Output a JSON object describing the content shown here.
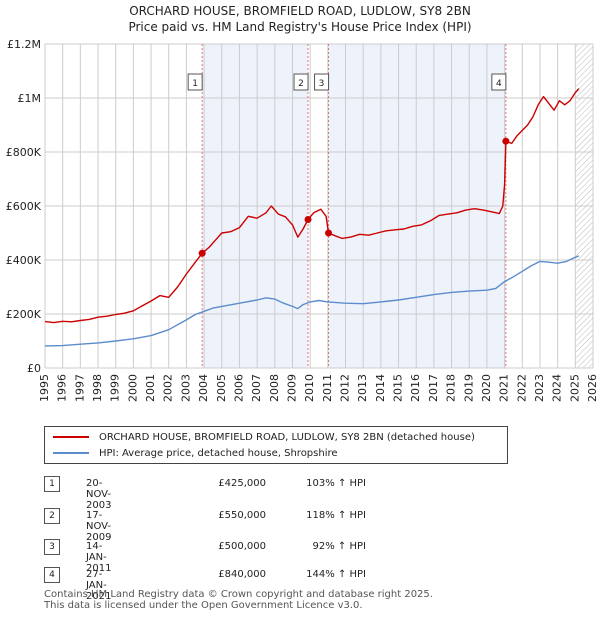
{
  "header": {
    "title": "ORCHARD HOUSE, BROMFIELD ROAD, LUDLOW, SY8 2BN",
    "subtitle": "Price paid vs. HM Land Registry's House Price Index (HPI)"
  },
  "chart_data": {
    "type": "line",
    "title": "ORCHARD HOUSE, BROMFIELD ROAD, LUDLOW, SY8 2BN",
    "subtitle": "Price paid vs. HM Land Registry's House Price Index (HPI)",
    "xlabel": "",
    "ylabel": "",
    "xlim": [
      1995,
      2026
    ],
    "ylim": [
      0,
      1200000
    ],
    "x_ticks": [
      "1995",
      "1996",
      "1997",
      "1998",
      "1999",
      "2000",
      "2001",
      "2002",
      "2003",
      "2004",
      "2005",
      "2006",
      "2007",
      "2008",
      "2009",
      "2010",
      "2011",
      "2012",
      "2013",
      "2014",
      "2015",
      "2016",
      "2017",
      "2018",
      "2019",
      "2020",
      "2021",
      "2022",
      "2023",
      "2024",
      "2025",
      "2026"
    ],
    "y_ticks": [
      {
        "value": 0,
        "label": "£0"
      },
      {
        "value": 200000,
        "label": "£200K"
      },
      {
        "value": 400000,
        "label": "£400K"
      },
      {
        "value": 600000,
        "label": "£600K"
      },
      {
        "value": 800000,
        "label": "£800K"
      },
      {
        "value": 1000000,
        "label": "£1M"
      },
      {
        "value": 1200000,
        "label": "£1.2M"
      }
    ],
    "grid": true,
    "future_from": 2025.0,
    "series": [
      {
        "name": "ORCHARD HOUSE, BROMFIELD ROAD, LUDLOW, SY8 2BN (detached house)",
        "color": "#cc0000",
        "points": [
          [
            1995.0,
            172000
          ],
          [
            1995.5,
            168000
          ],
          [
            1996.0,
            173000
          ],
          [
            1996.5,
            171000
          ],
          [
            1997.0,
            176000
          ],
          [
            1997.5,
            180000
          ],
          [
            1998.0,
            188000
          ],
          [
            1998.5,
            192000
          ],
          [
            1999.0,
            198000
          ],
          [
            1999.5,
            203000
          ],
          [
            2000.0,
            212000
          ],
          [
            2000.5,
            230000
          ],
          [
            2001.0,
            248000
          ],
          [
            2001.5,
            268000
          ],
          [
            2002.0,
            262000
          ],
          [
            2002.5,
            300000
          ],
          [
            2003.0,
            348000
          ],
          [
            2003.5,
            392000
          ],
          [
            2003.89,
            425000
          ],
          [
            2004.3,
            448000
          ],
          [
            2004.7,
            478000
          ],
          [
            2005.0,
            500000
          ],
          [
            2005.5,
            505000
          ],
          [
            2006.0,
            520000
          ],
          [
            2006.5,
            562000
          ],
          [
            2007.0,
            555000
          ],
          [
            2007.5,
            575000
          ],
          [
            2007.8,
            600000
          ],
          [
            2008.2,
            570000
          ],
          [
            2008.6,
            560000
          ],
          [
            2009.0,
            530000
          ],
          [
            2009.3,
            485000
          ],
          [
            2009.6,
            515000
          ],
          [
            2009.88,
            550000
          ],
          [
            2010.2,
            575000
          ],
          [
            2010.6,
            588000
          ],
          [
            2010.9,
            562000
          ],
          [
            2011.04,
            500000
          ],
          [
            2011.4,
            490000
          ],
          [
            2011.8,
            480000
          ],
          [
            2012.3,
            485000
          ],
          [
            2012.8,
            495000
          ],
          [
            2013.3,
            492000
          ],
          [
            2013.8,
            500000
          ],
          [
            2014.3,
            508000
          ],
          [
            2014.8,
            512000
          ],
          [
            2015.3,
            515000
          ],
          [
            2015.8,
            525000
          ],
          [
            2016.3,
            530000
          ],
          [
            2016.8,
            545000
          ],
          [
            2017.3,
            565000
          ],
          [
            2017.8,
            570000
          ],
          [
            2018.3,
            575000
          ],
          [
            2018.8,
            585000
          ],
          [
            2019.3,
            590000
          ],
          [
            2019.8,
            585000
          ],
          [
            2020.3,
            578000
          ],
          [
            2020.7,
            572000
          ],
          [
            2020.9,
            600000
          ],
          [
            2021.0,
            680000
          ],
          [
            2021.07,
            840000
          ],
          [
            2021.4,
            832000
          ],
          [
            2021.7,
            860000
          ],
          [
            2022.0,
            880000
          ],
          [
            2022.3,
            900000
          ],
          [
            2022.6,
            930000
          ],
          [
            2022.9,
            975000
          ],
          [
            2023.2,
            1005000
          ],
          [
            2023.5,
            980000
          ],
          [
            2023.8,
            955000
          ],
          [
            2024.1,
            990000
          ],
          [
            2024.4,
            975000
          ],
          [
            2024.7,
            990000
          ],
          [
            2025.0,
            1020000
          ],
          [
            2025.2,
            1035000
          ]
        ]
      },
      {
        "name": "HPI: Average price, detached house, Shropshire",
        "color": "#5b8ccc",
        "points": [
          [
            1995.0,
            82000
          ],
          [
            1996.0,
            83000
          ],
          [
            1997.0,
            88000
          ],
          [
            1998.0,
            93000
          ],
          [
            1999.0,
            100000
          ],
          [
            2000.0,
            108000
          ],
          [
            2001.0,
            120000
          ],
          [
            2002.0,
            142000
          ],
          [
            2003.0,
            178000
          ],
          [
            2003.5,
            198000
          ],
          [
            2004.0,
            210000
          ],
          [
            2004.5,
            222000
          ],
          [
            2005.0,
            228000
          ],
          [
            2006.0,
            240000
          ],
          [
            2007.0,
            252000
          ],
          [
            2007.5,
            260000
          ],
          [
            2008.0,
            255000
          ],
          [
            2008.5,
            240000
          ],
          [
            2009.0,
            228000
          ],
          [
            2009.3,
            220000
          ],
          [
            2009.6,
            235000
          ],
          [
            2010.0,
            245000
          ],
          [
            2010.5,
            250000
          ],
          [
            2011.0,
            245000
          ],
          [
            2012.0,
            240000
          ],
          [
            2013.0,
            238000
          ],
          [
            2014.0,
            245000
          ],
          [
            2015.0,
            252000
          ],
          [
            2016.0,
            262000
          ],
          [
            2017.0,
            272000
          ],
          [
            2018.0,
            280000
          ],
          [
            2019.0,
            285000
          ],
          [
            2020.0,
            288000
          ],
          [
            2020.5,
            295000
          ],
          [
            2021.0,
            320000
          ],
          [
            2021.5,
            338000
          ],
          [
            2022.0,
            358000
          ],
          [
            2022.5,
            378000
          ],
          [
            2023.0,
            395000
          ],
          [
            2023.5,
            392000
          ],
          [
            2024.0,
            388000
          ],
          [
            2024.5,
            395000
          ],
          [
            2025.0,
            410000
          ],
          [
            2025.2,
            415000
          ]
        ]
      }
    ],
    "transactions": [
      {
        "label": "1",
        "date": "20-NOV-2003",
        "x": 2003.89,
        "price_value": 425000,
        "price": "£425,000",
        "hpi": "103% ↑ HPI"
      },
      {
        "label": "2",
        "date": "17-NOV-2009",
        "x": 2009.88,
        "price_value": 550000,
        "price": "£550,000",
        "hpi": "118% ↑ HPI"
      },
      {
        "label": "3",
        "date": "14-JAN-2011",
        "x": 2011.04,
        "price_value": 500000,
        "price": "£500,000",
        "hpi": "92% ↑ HPI"
      },
      {
        "label": "4",
        "date": "27-JAN-2021",
        "x": 2021.07,
        "price_value": 840000,
        "price": "£840,000",
        "hpi": "144% ↑ HPI"
      }
    ]
  },
  "legend": {
    "items": [
      {
        "label": "ORCHARD HOUSE, BROMFIELD ROAD, LUDLOW, SY8 2BN (detached house)",
        "color": "#cc0000"
      },
      {
        "label": "HPI: Average price, detached house, Shropshire",
        "color": "#5b8ccc"
      }
    ]
  },
  "colors": {
    "period_shade": "#eef2fb",
    "grid": "#cccccc",
    "axis_text": "#222222",
    "vline": "#dd4444"
  },
  "footer": {
    "line1": "Contains HM Land Registry data © Crown copyright and database right 2025.",
    "line2": "This data is licensed under the Open Government Licence v3.0."
  }
}
